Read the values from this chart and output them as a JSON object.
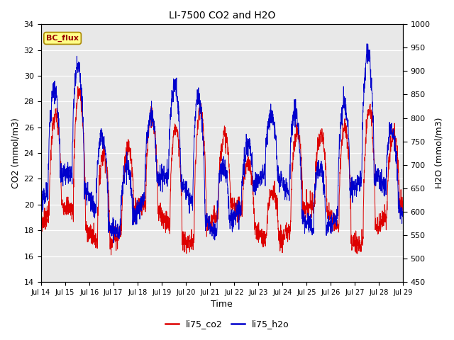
{
  "title": "LI-7500 CO2 and H2O",
  "xlabel": "Time",
  "ylabel_left": "CO2 (mmol/m3)",
  "ylabel_right": "H2O (mmol/m3)",
  "ylim_left": [
    14,
    34
  ],
  "ylim_right": [
    450,
    1000
  ],
  "yticks_left": [
    14,
    16,
    18,
    20,
    22,
    24,
    26,
    28,
    30,
    32,
    34
  ],
  "yticks_right": [
    450,
    500,
    550,
    600,
    650,
    700,
    750,
    800,
    850,
    900,
    950,
    1000
  ],
  "xtick_labels": [
    "Jul 14",
    "Jul 15",
    "Jul 16",
    "Jul 17",
    "Jul 18",
    "Jul 19",
    "Jul 20",
    "Jul 21",
    "Jul 22",
    "Jul 23",
    "Jul 24",
    "Jul 25",
    "Jul 26",
    "Jul 27",
    "Jul 28",
    "Jul 29"
  ],
  "color_co2": "#dd0000",
  "color_h2o": "#0000cc",
  "legend_labels": [
    "li75_co2",
    "li75_h2o"
  ],
  "annotation_text": "BC_flux",
  "background_color": "#e8e8e8",
  "title_fontsize": 10,
  "label_fontsize": 9,
  "tick_fontsize": 8,
  "linewidth": 0.7
}
